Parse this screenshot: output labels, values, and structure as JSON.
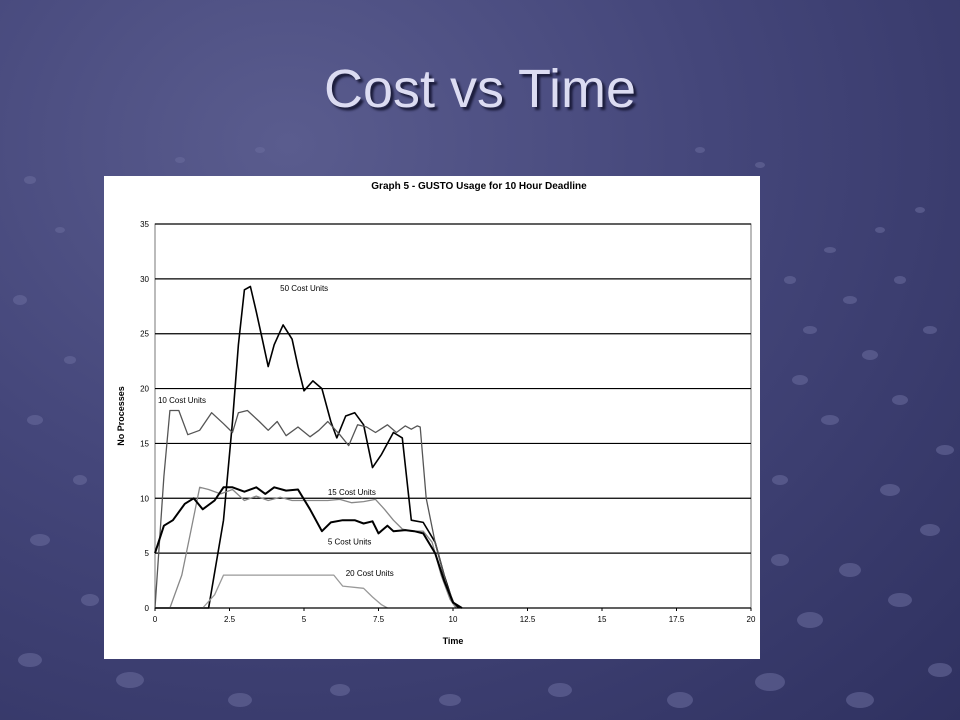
{
  "slide": {
    "title": "Cost vs Time"
  },
  "chart_data": {
    "type": "line",
    "title": "Graph 5 - GUSTO Usage for 10 Hour Deadline",
    "xlabel": "Time",
    "ylabel": "No Processes",
    "xlim": [
      0,
      20
    ],
    "ylim": [
      0,
      35
    ],
    "x_ticks": [
      "0",
      "2.5",
      "5",
      "7.5",
      "10",
      "12.5",
      "15",
      "17.5",
      "20"
    ],
    "y_ticks": [
      "0",
      "5",
      "10",
      "15",
      "20",
      "25",
      "30",
      "35"
    ],
    "grid": "horizontal",
    "series": [
      {
        "name": "50 Cost Units",
        "color": "#000000",
        "width": 1.6,
        "points": [
          [
            0,
            0
          ],
          [
            1.8,
            0
          ],
          [
            2.3,
            8
          ],
          [
            2.6,
            17
          ],
          [
            2.8,
            24
          ],
          [
            3.0,
            29
          ],
          [
            3.2,
            29.3
          ],
          [
            3.4,
            27
          ],
          [
            3.6,
            24.5
          ],
          [
            3.8,
            22
          ],
          [
            4.0,
            24
          ],
          [
            4.3,
            25.8
          ],
          [
            4.6,
            24.5
          ],
          [
            4.8,
            22
          ],
          [
            5.0,
            19.8
          ],
          [
            5.3,
            20.7
          ],
          [
            5.6,
            20
          ],
          [
            5.9,
            17
          ],
          [
            6.1,
            15.5
          ],
          [
            6.4,
            17.5
          ],
          [
            6.7,
            17.8
          ],
          [
            7.0,
            16.7
          ],
          [
            7.3,
            12.8
          ],
          [
            7.6,
            14
          ],
          [
            8.0,
            16
          ],
          [
            8.3,
            15.5
          ],
          [
            8.6,
            8
          ],
          [
            9.0,
            7.8
          ],
          [
            9.4,
            6
          ],
          [
            9.7,
            3
          ],
          [
            10.0,
            0.5
          ],
          [
            10.2,
            0
          ]
        ]
      },
      {
        "name": "10 Cost Units",
        "color": "#555555",
        "width": 1.3,
        "points": [
          [
            0,
            0
          ],
          [
            0.3,
            12
          ],
          [
            0.5,
            18
          ],
          [
            0.8,
            18
          ],
          [
            1.1,
            15.8
          ],
          [
            1.5,
            16.2
          ],
          [
            1.9,
            17.8
          ],
          [
            2.3,
            16.8
          ],
          [
            2.6,
            16
          ],
          [
            2.8,
            17.8
          ],
          [
            3.1,
            18
          ],
          [
            3.5,
            17
          ],
          [
            3.8,
            16.2
          ],
          [
            4.1,
            17
          ],
          [
            4.4,
            15.7
          ],
          [
            4.8,
            16.5
          ],
          [
            5.2,
            15.6
          ],
          [
            5.5,
            16.2
          ],
          [
            5.8,
            17
          ],
          [
            6.2,
            15.8
          ],
          [
            6.5,
            14.8
          ],
          [
            6.8,
            16.7
          ],
          [
            7.1,
            16.5
          ],
          [
            7.4,
            16
          ],
          [
            7.8,
            16.7
          ],
          [
            8.1,
            16
          ],
          [
            8.4,
            16.6
          ],
          [
            8.6,
            16.3
          ],
          [
            8.8,
            16.6
          ],
          [
            8.9,
            16.5
          ],
          [
            9.1,
            10
          ],
          [
            9.4,
            6
          ],
          [
            9.8,
            2
          ],
          [
            10.1,
            0
          ]
        ]
      },
      {
        "name": "15 Cost Units",
        "color": "#888888",
        "width": 1.3,
        "points": [
          [
            0.5,
            0
          ],
          [
            0.9,
            3
          ],
          [
            1.2,
            7
          ],
          [
            1.5,
            11
          ],
          [
            1.8,
            10.8
          ],
          [
            2.2,
            10.4
          ],
          [
            2.6,
            10.8
          ],
          [
            3.0,
            9.8
          ],
          [
            3.4,
            10.2
          ],
          [
            3.8,
            9.8
          ],
          [
            4.2,
            10.1
          ],
          [
            4.6,
            9.8
          ],
          [
            5.0,
            9.8
          ],
          [
            5.4,
            9.8
          ],
          [
            5.8,
            9.8
          ],
          [
            6.2,
            9.9
          ],
          [
            6.6,
            9.6
          ],
          [
            7.0,
            9.7
          ],
          [
            7.4,
            9.9
          ],
          [
            7.7,
            9
          ],
          [
            8.0,
            8
          ],
          [
            8.3,
            7.2
          ],
          [
            8.6,
            7
          ],
          [
            9.0,
            7
          ],
          [
            9.3,
            6
          ],
          [
            9.6,
            3
          ],
          [
            9.9,
            0.8
          ],
          [
            10.1,
            0
          ]
        ]
      },
      {
        "name": "5 Cost Units",
        "color": "#000000",
        "width": 2.0,
        "points": [
          [
            0,
            5
          ],
          [
            0.3,
            7.5
          ],
          [
            0.6,
            8
          ],
          [
            1.0,
            9.5
          ],
          [
            1.3,
            10
          ],
          [
            1.6,
            9
          ],
          [
            2.0,
            9.8
          ],
          [
            2.3,
            11
          ],
          [
            2.6,
            11
          ],
          [
            3.0,
            10.6
          ],
          [
            3.4,
            11
          ],
          [
            3.7,
            10.4
          ],
          [
            4.0,
            11
          ],
          [
            4.4,
            10.7
          ],
          [
            4.8,
            10.8
          ],
          [
            5.2,
            9
          ],
          [
            5.6,
            7
          ],
          [
            5.9,
            7.8
          ],
          [
            6.3,
            8
          ],
          [
            6.7,
            8
          ],
          [
            7.0,
            7.7
          ],
          [
            7.3,
            7.9
          ],
          [
            7.5,
            6.8
          ],
          [
            7.8,
            7.5
          ],
          [
            8.0,
            7
          ],
          [
            8.4,
            7.1
          ],
          [
            8.7,
            7
          ],
          [
            9.0,
            6.8
          ],
          [
            9.4,
            5
          ],
          [
            9.7,
            2.5
          ],
          [
            10.0,
            0.5
          ],
          [
            10.3,
            0
          ]
        ]
      },
      {
        "name": "20 Cost Units",
        "color": "#999999",
        "width": 1.3,
        "points": [
          [
            0,
            0
          ],
          [
            1.6,
            0
          ],
          [
            2.0,
            1.2
          ],
          [
            2.3,
            3
          ],
          [
            3.0,
            3
          ],
          [
            4.0,
            3
          ],
          [
            5.0,
            3
          ],
          [
            6.0,
            3
          ],
          [
            6.3,
            2
          ],
          [
            7.0,
            1.8
          ],
          [
            7.3,
            1
          ],
          [
            7.6,
            0.3
          ],
          [
            7.8,
            0
          ]
        ]
      }
    ],
    "annotations": [
      {
        "text": "50 Cost Units",
        "x": 4.2,
        "y": 28.9
      },
      {
        "text": "10 Cost Units",
        "x": 0.1,
        "y": 18.7
      },
      {
        "text": "15 Cost Units",
        "x": 5.8,
        "y": 10.3
      },
      {
        "text": "5 Cost Units",
        "x": 5.8,
        "y": 5.8
      },
      {
        "text": "20 Cost Units",
        "x": 6.4,
        "y": 2.9
      }
    ]
  }
}
